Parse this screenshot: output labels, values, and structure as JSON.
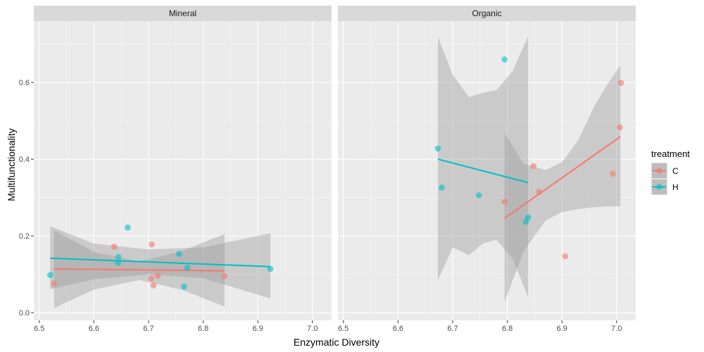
{
  "chart_data": {
    "type": "scatter",
    "xlabel": "Enzymatic Diversity",
    "ylabel": "Multifunctionality",
    "xlim": [
      6.49,
      7.035
    ],
    "ylim": [
      -0.02,
      0.76
    ],
    "x_ticks": [
      "6.5",
      "6.6",
      "6.7",
      "6.8",
      "6.9",
      "7.0"
    ],
    "y_ticks": [
      "0.0",
      "0.2",
      "0.4",
      "0.6"
    ],
    "grid": true,
    "legend": {
      "title": "treatment",
      "position": "right",
      "entries": [
        {
          "label": "C",
          "color": "#F8766D"
        },
        {
          "label": "H",
          "color": "#00BFC4"
        }
      ]
    },
    "facets": [
      {
        "label": "Mineral",
        "series": [
          {
            "name": "C",
            "color": "#F8766D",
            "points": [
              [
                6.527,
                0.076
              ],
              [
                6.637,
                0.172
              ],
              [
                6.706,
                0.178
              ],
              [
                6.705,
                0.089
              ],
              [
                6.709,
                0.071
              ],
              [
                6.717,
                0.096
              ],
              [
                6.839,
                0.095
              ]
            ],
            "fit": {
              "x": [
                6.527,
                6.839
              ],
              "y": [
                0.114,
                0.109
              ]
            },
            "band": {
              "x": [
                6.527,
                6.6,
                6.683,
                6.76,
                6.839
              ],
              "lower": [
                0.012,
                0.06,
                0.085,
                0.06,
                0.016
              ],
              "upper": [
                0.215,
                0.158,
                0.133,
                0.16,
                0.205
              ]
            }
          },
          {
            "name": "H",
            "color": "#00BFC4",
            "points": [
              [
                6.52,
                0.098
              ],
              [
                6.644,
                0.13
              ],
              [
                6.645,
                0.145
              ],
              [
                6.662,
                0.222
              ],
              [
                6.756,
                0.153
              ],
              [
                6.765,
                0.068
              ],
              [
                6.771,
                0.117
              ],
              [
                6.923,
                0.114
              ]
            ],
            "fit": {
              "x": [
                6.52,
                6.923
              ],
              "y": [
                0.142,
                0.12
              ]
            },
            "band": {
              "x": [
                6.52,
                6.6,
                6.7,
                6.8,
                6.923
              ],
              "lower": [
                0.061,
                0.087,
                0.1,
                0.09,
                0.037
              ],
              "upper": [
                0.225,
                0.18,
                0.165,
                0.17,
                0.207
              ]
            }
          }
        ]
      },
      {
        "label": "Organic",
        "series": [
          {
            "name": "C",
            "color": "#F8766D",
            "points": [
              [
                6.795,
                0.289
              ],
              [
                6.848,
                0.382
              ],
              [
                6.858,
                0.315
              ],
              [
                6.906,
                0.147
              ],
              [
                6.993,
                0.362
              ],
              [
                7.006,
                0.483
              ],
              [
                7.008,
                0.599
              ]
            ],
            "fit": {
              "x": [
                6.795,
                7.007
              ],
              "y": [
                0.246,
                0.459
              ]
            },
            "band": {
              "x": [
                6.795,
                6.83,
                6.87,
                6.9,
                6.93,
                6.96,
                6.985,
                7.007
              ],
              "lower": [
                0.028,
                0.16,
                0.24,
                0.262,
                0.27,
                0.275,
                0.277,
                0.277
              ],
              "upper": [
                0.468,
                0.388,
                0.372,
                0.392,
                0.45,
                0.54,
                0.6,
                0.645
              ]
            }
          },
          {
            "name": "H",
            "color": "#00BFC4",
            "points": [
              [
                6.673,
                0.428
              ],
              [
                6.68,
                0.326
              ],
              [
                6.748,
                0.306
              ],
              [
                6.795,
                0.66
              ],
              [
                6.834,
                0.237
              ],
              [
                6.838,
                0.248
              ]
            ],
            "fit": {
              "x": [
                6.673,
                6.838
              ],
              "y": [
                0.4,
                0.339
              ]
            },
            "band": {
              "x": [
                6.673,
                6.7,
                6.73,
                6.755,
                6.78,
                6.81,
                6.838
              ],
              "lower": [
                0.085,
                0.17,
                0.15,
                0.18,
                0.19,
                0.14,
                0.04
              ],
              "upper": [
                0.72,
                0.62,
                0.562,
                0.573,
                0.58,
                0.63,
                0.72
              ]
            }
          }
        ]
      }
    ]
  }
}
